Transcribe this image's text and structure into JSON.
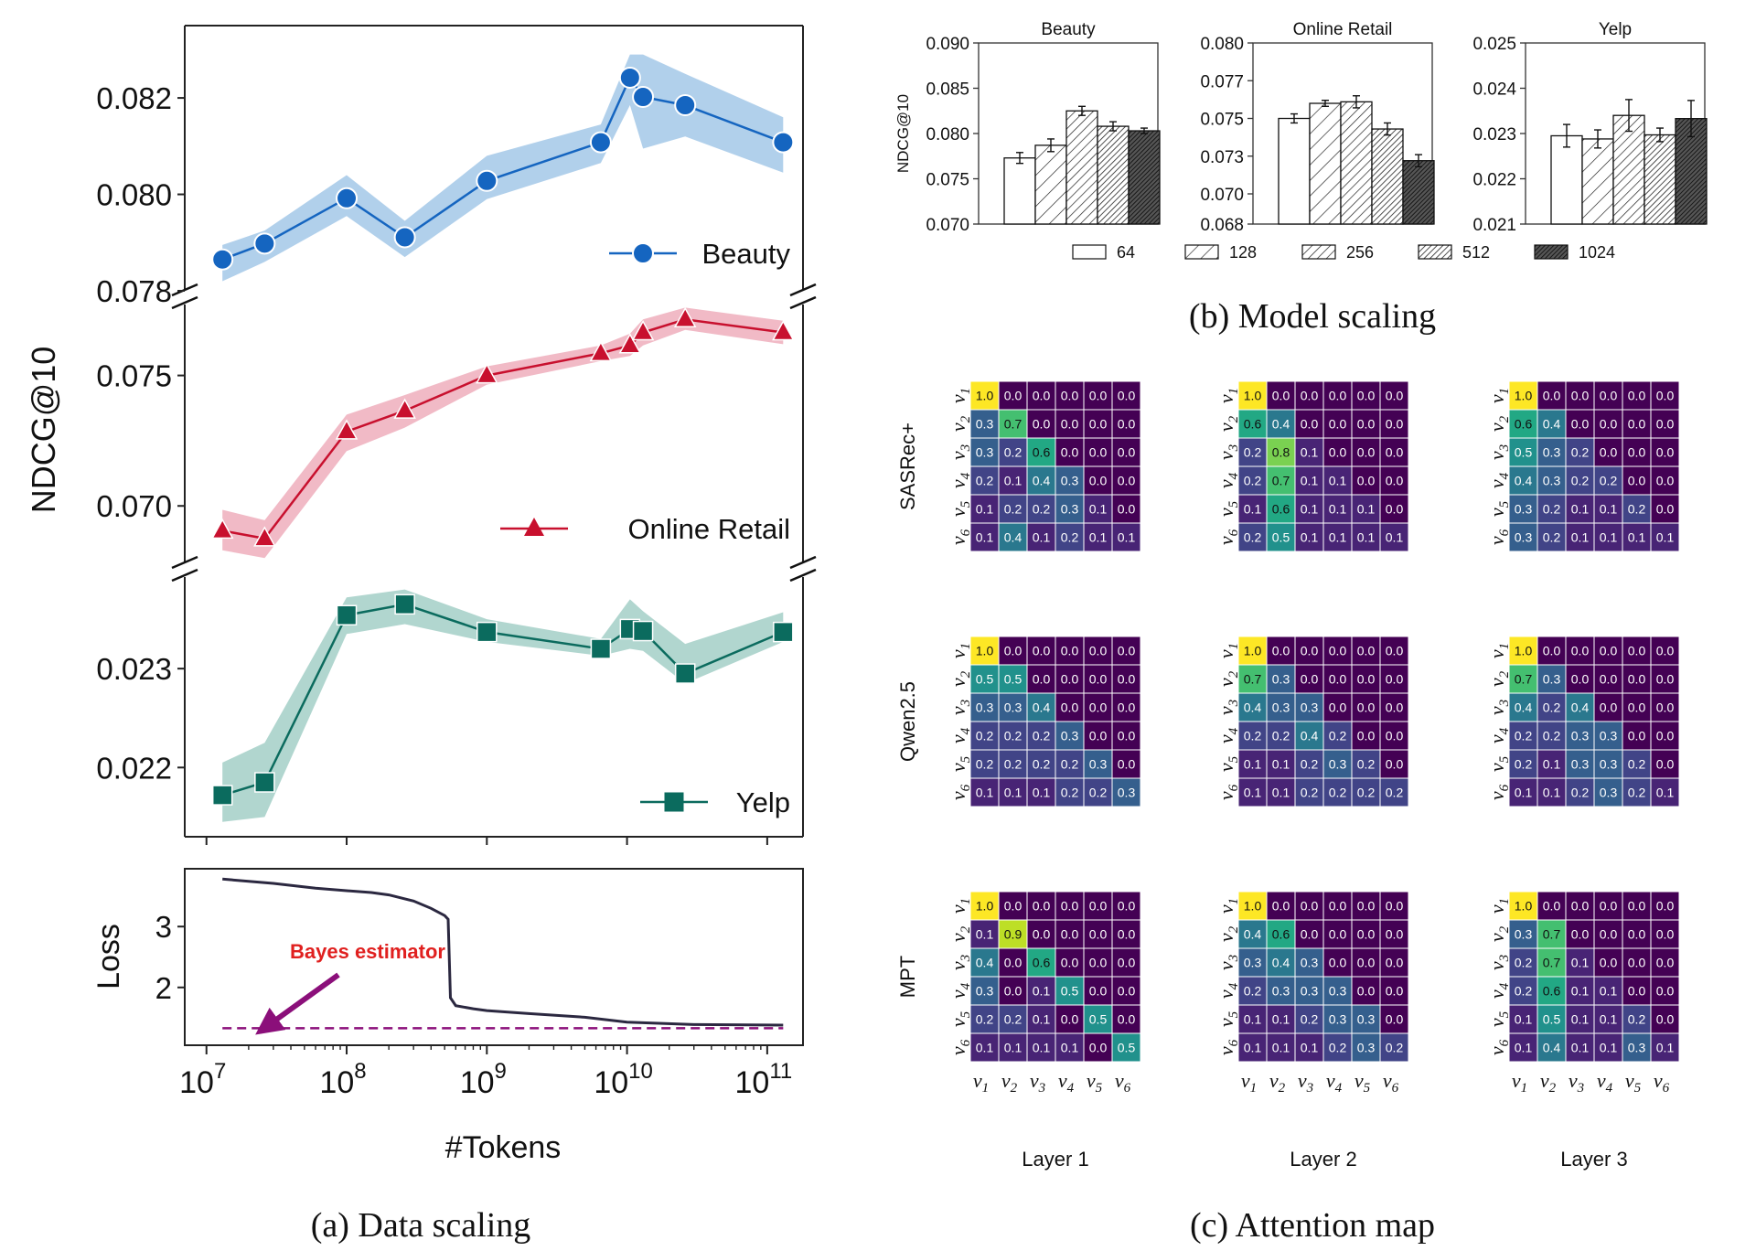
{
  "captions": {
    "a": "(a) Data scaling",
    "b": "(b) Model scaling",
    "c": "(c) Attention map"
  },
  "colors": {
    "beauty": "#1565c0",
    "beauty_band": "#a9cbe9",
    "retail": "#c8102e",
    "retail_band": "#f0b3c0",
    "yelp": "#0b6b5e",
    "yelp_band": "#a8d2ca",
    "loss": "#2b2840",
    "bayes": "#8b0f7a",
    "bayes_label": "#e0201f"
  },
  "chart_data": [
    {
      "type": "line",
      "id": "data-scaling",
      "ylabel": "NDCG@10",
      "xlabel": "#Tokens",
      "xscale": "log",
      "xlim": [
        7000000.0,
        180000000000.0
      ],
      "xticks": [
        10000000.0,
        100000000.0,
        1000000000.0,
        10000000000.0,
        100000000000.0
      ],
      "xtick_labels": [
        {
          "base": "10",
          "exp": "7"
        },
        {
          "base": "10",
          "exp": "8"
        },
        {
          "base": "10",
          "exp": "9"
        },
        {
          "base": "10",
          "exp": "10"
        },
        {
          "base": "10",
          "exp": "11"
        }
      ],
      "legend_position": "lower-right",
      "panels": [
        {
          "name": "Beauty",
          "marker": "circle",
          "ylim": [
            0.078,
            0.0835
          ],
          "yticks": [
            "0.078",
            "0.080",
            "0.082"
          ],
          "ytick_values": [
            0.078,
            0.08,
            0.082
          ],
          "x": [
            13000000.0,
            26000000.0,
            100000000.0,
            260000000.0,
            1000000000.0,
            6500000000.0,
            10500000000.0,
            13000000000.0,
            26000000000.0,
            130000000000.0
          ],
          "y": [
            0.07865,
            0.07898,
            0.07992,
            0.07911,
            0.08028,
            0.08108,
            0.08242,
            0.08202,
            0.08185,
            0.08108
          ],
          "band_low": [
            0.0782,
            0.0786,
            0.07955,
            0.0787,
            0.0799,
            0.08065,
            0.08185,
            0.08095,
            0.0812,
            0.08045
          ],
          "band_high": [
            0.07895,
            0.07925,
            0.0804,
            0.07945,
            0.0808,
            0.08145,
            0.0829,
            0.0829,
            0.0825,
            0.0816
          ]
        },
        {
          "name": "Online Retail",
          "marker": "triangle",
          "ylim": [
            0.0678,
            0.078
          ],
          "yticks": [
            "0.070",
            "0.075"
          ],
          "ytick_values": [
            0.07,
            0.075
          ],
          "x": [
            13000000.0,
            26000000.0,
            100000000.0,
            260000000.0,
            1000000000.0,
            6500000000.0,
            10500000000.0,
            13000000000.0,
            26000000000.0,
            130000000000.0
          ],
          "y": [
            0.06905,
            0.06875,
            0.07285,
            0.07365,
            0.075,
            0.07585,
            0.07615,
            0.07665,
            0.07715,
            0.07665
          ],
          "band_low": [
            0.0683,
            0.068,
            0.0721,
            0.073,
            0.07465,
            0.07555,
            0.07575,
            0.07615,
            0.07675,
            0.0762
          ],
          "band_high": [
            0.06985,
            0.06945,
            0.0735,
            0.07425,
            0.07535,
            0.07615,
            0.0766,
            0.07715,
            0.0776,
            0.0771
          ]
        },
        {
          "name": "Yelp",
          "marker": "square",
          "ylim": [
            0.0213,
            0.024
          ],
          "yticks": [
            "0.022",
            "0.023"
          ],
          "ytick_values": [
            0.022,
            0.023
          ],
          "x": [
            13000000.0,
            26000000.0,
            100000000.0,
            260000000.0,
            1000000000.0,
            6500000000.0,
            10500000000.0,
            13000000000.0,
            26000000000.0,
            130000000000.0
          ],
          "y": [
            0.02172,
            0.02185,
            0.02354,
            0.02365,
            0.02337,
            0.0232,
            0.0234,
            0.02338,
            0.02295,
            0.02337
          ],
          "band_low": [
            0.02145,
            0.0215,
            0.02335,
            0.02345,
            0.02327,
            0.02313,
            0.0232,
            0.02318,
            0.02285,
            0.02327
          ],
          "band_high": [
            0.02205,
            0.02225,
            0.02372,
            0.0238,
            0.0235,
            0.0233,
            0.0237,
            0.02358,
            0.02325,
            0.02357
          ]
        }
      ],
      "loss": {
        "ylabel": "Loss",
        "ylim": [
          1.05,
          3.95
        ],
        "yticks": [
          2,
          3
        ],
        "x": [
          13000000.0,
          30000000.0,
          60000000.0,
          100000000.0,
          150000000.0,
          200000000.0,
          300000000.0,
          400000000.0,
          500000000.0,
          530000000.0,
          550000000.0,
          600000000.0,
          800000000.0,
          1000000000.0,
          2000000000.0,
          5000000000.0,
          10000000000.0,
          30000000000.0,
          130000000000.0
        ],
        "y": [
          3.78,
          3.71,
          3.63,
          3.59,
          3.56,
          3.52,
          3.42,
          3.3,
          3.18,
          3.12,
          1.83,
          1.7,
          1.65,
          1.62,
          1.57,
          1.51,
          1.43,
          1.39,
          1.38
        ],
        "bayes": {
          "label": "Bayes estimator",
          "y": 1.33
        }
      }
    },
    {
      "type": "bar",
      "id": "model-scaling",
      "ylabel": "NDCG@10",
      "legend_position": "bottom",
      "series_names": [
        "64",
        "128",
        "256",
        "512",
        "1024"
      ],
      "panels": [
        {
          "title": "Beauty",
          "ylim": [
            0.07,
            0.09
          ],
          "yticks": [
            "0.070",
            "0.075",
            "0.080",
            "0.085",
            "0.090"
          ],
          "ytick_values": [
            0.07,
            0.075,
            0.08,
            0.085,
            0.09
          ],
          "values": [
            0.0773,
            0.0787,
            0.0825,
            0.0808,
            0.0803
          ],
          "errors": [
            0.0006,
            0.0007,
            0.0005,
            0.0005,
            0.0003
          ]
        },
        {
          "title": "Online Retail",
          "ylim": [
            0.068,
            0.08
          ],
          "yticks": [
            "0.068",
            "0.070",
            "0.073",
            "0.075",
            "0.077",
            "0.080"
          ],
          "ytick_values": [
            0.068,
            0.07,
            0.0725,
            0.075,
            0.0775,
            0.08
          ],
          "values": [
            0.075,
            0.076,
            0.0761,
            0.0743,
            0.0722
          ],
          "errors": [
            0.0003,
            0.0002,
            0.0004,
            0.0004,
            0.0004
          ]
        },
        {
          "title": "Yelp",
          "ylim": [
            0.021,
            0.025
          ],
          "yticks": [
            "0.021",
            "0.022",
            "0.023",
            "0.024",
            "0.025"
          ],
          "ytick_values": [
            0.021,
            0.022,
            0.023,
            0.024,
            0.025
          ],
          "values": [
            0.02295,
            0.02288,
            0.0234,
            0.02297,
            0.02333
          ],
          "errors": [
            0.00025,
            0.0002,
            0.00035,
            0.00015,
            0.0004
          ]
        }
      ]
    },
    {
      "type": "heatmap",
      "id": "attention-map",
      "row_labels": [
        "SASRec+",
        "Qwen2.5",
        "MPT"
      ],
      "col_labels": [
        "Layer 1",
        "Layer 2",
        "Layer 3"
      ],
      "axis_tokens": [
        "1",
        "2",
        "3",
        "4",
        "5",
        "6"
      ],
      "axis_symbol": "v",
      "value_range": [
        0,
        1
      ],
      "matrices": [
        [
          [
            [
              1.0,
              0.0,
              0.0,
              0.0,
              0.0,
              0.0
            ],
            [
              0.3,
              0.7,
              0.0,
              0.0,
              0.0,
              0.0
            ],
            [
              0.3,
              0.2,
              0.6,
              0.0,
              0.0,
              0.0
            ],
            [
              0.2,
              0.1,
              0.4,
              0.3,
              0.0,
              0.0
            ],
            [
              0.1,
              0.2,
              0.2,
              0.3,
              0.1,
              0.0
            ],
            [
              0.1,
              0.4,
              0.1,
              0.2,
              0.1,
              0.1
            ]
          ],
          [
            [
              1.0,
              0.0,
              0.0,
              0.0,
              0.0,
              0.0
            ],
            [
              0.6,
              0.4,
              0.0,
              0.0,
              0.0,
              0.0
            ],
            [
              0.2,
              0.8,
              0.1,
              0.0,
              0.0,
              0.0
            ],
            [
              0.2,
              0.7,
              0.1,
              0.1,
              0.0,
              0.0
            ],
            [
              0.1,
              0.6,
              0.1,
              0.1,
              0.1,
              0.0
            ],
            [
              0.2,
              0.5,
              0.1,
              0.1,
              0.1,
              0.1
            ]
          ],
          [
            [
              1.0,
              0.0,
              0.0,
              0.0,
              0.0,
              0.0
            ],
            [
              0.6,
              0.4,
              0.0,
              0.0,
              0.0,
              0.0
            ],
            [
              0.5,
              0.3,
              0.2,
              0.0,
              0.0,
              0.0
            ],
            [
              0.4,
              0.3,
              0.2,
              0.2,
              0.0,
              0.0
            ],
            [
              0.3,
              0.2,
              0.1,
              0.1,
              0.2,
              0.0
            ],
            [
              0.3,
              0.2,
              0.1,
              0.1,
              0.1,
              0.1
            ]
          ]
        ],
        [
          [
            [
              1.0,
              0.0,
              0.0,
              0.0,
              0.0,
              0.0
            ],
            [
              0.5,
              0.5,
              0.0,
              0.0,
              0.0,
              0.0
            ],
            [
              0.3,
              0.3,
              0.4,
              0.0,
              0.0,
              0.0
            ],
            [
              0.2,
              0.2,
              0.2,
              0.3,
              0.0,
              0.0
            ],
            [
              0.2,
              0.2,
              0.2,
              0.2,
              0.3,
              0.0
            ],
            [
              0.1,
              0.1,
              0.1,
              0.2,
              0.2,
              0.3
            ]
          ],
          [
            [
              1.0,
              0.0,
              0.0,
              0.0,
              0.0,
              0.0
            ],
            [
              0.7,
              0.3,
              0.0,
              0.0,
              0.0,
              0.0
            ],
            [
              0.4,
              0.3,
              0.3,
              0.0,
              0.0,
              0.0
            ],
            [
              0.2,
              0.2,
              0.4,
              0.2,
              0.0,
              0.0
            ],
            [
              0.1,
              0.1,
              0.2,
              0.3,
              0.2,
              0.0
            ],
            [
              0.1,
              0.1,
              0.2,
              0.2,
              0.2,
              0.2
            ]
          ],
          [
            [
              1.0,
              0.0,
              0.0,
              0.0,
              0.0,
              0.0
            ],
            [
              0.7,
              0.3,
              0.0,
              0.0,
              0.0,
              0.0
            ],
            [
              0.4,
              0.2,
              0.4,
              0.0,
              0.0,
              0.0
            ],
            [
              0.2,
              0.2,
              0.3,
              0.3,
              0.0,
              0.0
            ],
            [
              0.2,
              0.1,
              0.3,
              0.3,
              0.2,
              0.0
            ],
            [
              0.1,
              0.1,
              0.2,
              0.3,
              0.2,
              0.1
            ]
          ]
        ],
        [
          [
            [
              1.0,
              0.0,
              0.0,
              0.0,
              0.0,
              0.0
            ],
            [
              0.1,
              0.9,
              0.0,
              0.0,
              0.0,
              0.0
            ],
            [
              0.4,
              0.0,
              0.6,
              0.0,
              0.0,
              0.0
            ],
            [
              0.3,
              0.0,
              0.1,
              0.5,
              0.0,
              0.0
            ],
            [
              0.2,
              0.2,
              0.1,
              0.0,
              0.5,
              0.0
            ],
            [
              0.1,
              0.1,
              0.1,
              0.1,
              0.0,
              0.5
            ]
          ],
          [
            [
              1.0,
              0.0,
              0.0,
              0.0,
              0.0,
              0.0
            ],
            [
              0.4,
              0.6,
              0.0,
              0.0,
              0.0,
              0.0
            ],
            [
              0.3,
              0.4,
              0.3,
              0.0,
              0.0,
              0.0
            ],
            [
              0.2,
              0.3,
              0.3,
              0.3,
              0.0,
              0.0
            ],
            [
              0.1,
              0.1,
              0.2,
              0.3,
              0.3,
              0.0
            ],
            [
              0.1,
              0.1,
              0.1,
              0.2,
              0.3,
              0.2
            ]
          ],
          [
            [
              1.0,
              0.0,
              0.0,
              0.0,
              0.0,
              0.0
            ],
            [
              0.3,
              0.7,
              0.0,
              0.0,
              0.0,
              0.0
            ],
            [
              0.2,
              0.7,
              0.1,
              0.0,
              0.0,
              0.0
            ],
            [
              0.2,
              0.6,
              0.1,
              0.1,
              0.0,
              0.0
            ],
            [
              0.1,
              0.5,
              0.1,
              0.1,
              0.2,
              0.0
            ],
            [
              0.1,
              0.4,
              0.1,
              0.1,
              0.3,
              0.1
            ]
          ]
        ]
      ]
    }
  ]
}
